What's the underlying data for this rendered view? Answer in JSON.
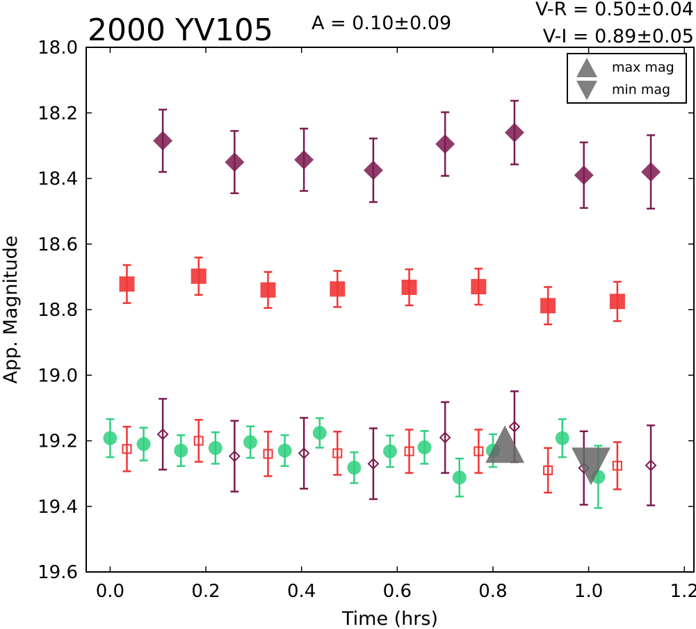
{
  "chart_data": {
    "type": "scatter",
    "title": "2000 YV105",
    "annotations": {
      "amplitude": "A  = 0.10±0.09",
      "vr": "V-R = 0.50±0.04",
      "vi": "V-I  = 0.89±0.05"
    },
    "xlabel": "Time (hrs)",
    "ylabel": "App. Magnitude",
    "xlim": [
      -0.05,
      1.22
    ],
    "ylim": [
      18.0,
      19.6
    ],
    "y_inverted": true,
    "xticks": [
      "0.0",
      "0.2",
      "0.4",
      "0.6",
      "0.8",
      "1.0",
      "1.2"
    ],
    "yticks": [
      "18.0",
      "18.2",
      "18.4",
      "18.6",
      "18.8",
      "19.0",
      "19.2",
      "19.4",
      "19.6"
    ],
    "legend": {
      "placement": "top-right",
      "entries": [
        {
          "label": "max mag",
          "marker": "triangle-up"
        },
        {
          "label": "min mag",
          "marker": "triangle-down"
        }
      ]
    },
    "series": [
      {
        "marker": "diamond-filled",
        "color": "#7b1a4f",
        "points": [
          {
            "x": 0.11,
            "y": 18.285,
            "err": 0.095
          },
          {
            "x": 0.26,
            "y": 18.35,
            "err": 0.095
          },
          {
            "x": 0.405,
            "y": 18.343,
            "err": 0.095
          },
          {
            "x": 0.55,
            "y": 18.375,
            "err": 0.097
          },
          {
            "x": 0.7,
            "y": 18.295,
            "err": 0.097
          },
          {
            "x": 0.845,
            "y": 18.26,
            "err": 0.097
          },
          {
            "x": 0.99,
            "y": 18.39,
            "err": 0.1
          },
          {
            "x": 1.13,
            "y": 18.38,
            "err": 0.112
          }
        ]
      },
      {
        "marker": "square-filled",
        "color": "#f03535",
        "points": [
          {
            "x": 0.035,
            "y": 18.722,
            "err": 0.058
          },
          {
            "x": 0.185,
            "y": 18.698,
            "err": 0.057
          },
          {
            "x": 0.33,
            "y": 18.74,
            "err": 0.055
          },
          {
            "x": 0.475,
            "y": 18.737,
            "err": 0.055
          },
          {
            "x": 0.625,
            "y": 18.732,
            "err": 0.055
          },
          {
            "x": 0.77,
            "y": 18.73,
            "err": 0.055
          },
          {
            "x": 0.915,
            "y": 18.788,
            "err": 0.057
          },
          {
            "x": 1.06,
            "y": 18.775,
            "err": 0.06
          }
        ]
      },
      {
        "marker": "circle-filled",
        "color": "#2fd07f",
        "points": [
          {
            "x": 0.0,
            "y": 19.192,
            "err": 0.058
          },
          {
            "x": 0.07,
            "y": 19.21,
            "err": 0.05
          },
          {
            "x": 0.148,
            "y": 19.23,
            "err": 0.047
          },
          {
            "x": 0.22,
            "y": 19.222,
            "err": 0.048
          },
          {
            "x": 0.293,
            "y": 19.204,
            "err": 0.048
          },
          {
            "x": 0.365,
            "y": 19.23,
            "err": 0.047
          },
          {
            "x": 0.438,
            "y": 19.176,
            "err": 0.045
          },
          {
            "x": 0.51,
            "y": 19.282,
            "err": 0.047
          },
          {
            "x": 0.585,
            "y": 19.232,
            "err": 0.048
          },
          {
            "x": 0.657,
            "y": 19.22,
            "err": 0.05
          },
          {
            "x": 0.73,
            "y": 19.312,
            "err": 0.058
          },
          {
            "x": 0.8,
            "y": 19.23,
            "err": 0.05
          },
          {
            "x": 0.945,
            "y": 19.192,
            "err": 0.058
          },
          {
            "x": 1.02,
            "y": 19.31,
            "err": 0.095
          }
        ]
      },
      {
        "marker": "square-open",
        "color": "#f03535",
        "points": [
          {
            "x": 0.035,
            "y": 19.225,
            "err": 0.068
          },
          {
            "x": 0.185,
            "y": 19.2,
            "err": 0.064
          },
          {
            "x": 0.33,
            "y": 19.24,
            "err": 0.068
          },
          {
            "x": 0.475,
            "y": 19.238,
            "err": 0.066
          },
          {
            "x": 0.625,
            "y": 19.232,
            "err": 0.066
          },
          {
            "x": 0.77,
            "y": 19.232,
            "err": 0.066
          },
          {
            "x": 0.915,
            "y": 19.29,
            "err": 0.068
          },
          {
            "x": 1.06,
            "y": 19.276,
            "err": 0.072
          }
        ]
      },
      {
        "marker": "diamond-open",
        "color": "#7b1a4f",
        "points": [
          {
            "x": 0.11,
            "y": 19.18,
            "err": 0.108
          },
          {
            "x": 0.26,
            "y": 19.247,
            "err": 0.108
          },
          {
            "x": 0.405,
            "y": 19.238,
            "err": 0.108
          },
          {
            "x": 0.55,
            "y": 19.27,
            "err": 0.108
          },
          {
            "x": 0.7,
            "y": 19.19,
            "err": 0.108
          },
          {
            "x": 0.845,
            "y": 19.157,
            "err": 0.108
          },
          {
            "x": 0.99,
            "y": 19.283,
            "err": 0.112
          },
          {
            "x": 1.13,
            "y": 19.275,
            "err": 0.122
          }
        ]
      }
    ],
    "markers": [
      {
        "label": "max mag",
        "marker": "triangle-up",
        "x": 0.825,
        "y": 19.21,
        "color": "#666666"
      },
      {
        "label": "min mag",
        "marker": "triangle-down",
        "x": 1.005,
        "y": 19.278,
        "color": "#666666"
      }
    ]
  }
}
